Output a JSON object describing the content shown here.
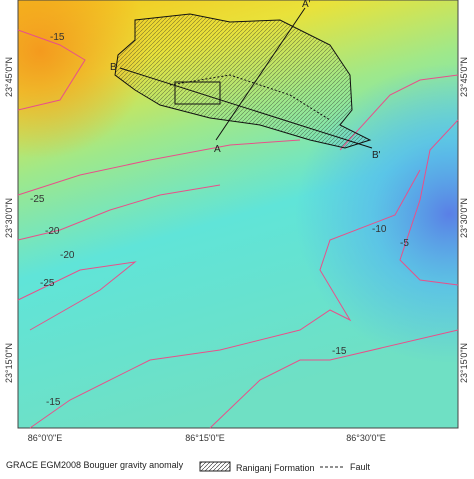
{
  "map": {
    "lat_labels": [
      "23°45'0\"N",
      "23°30'0\"N",
      "23°15'0\"N"
    ],
    "lon_labels": [
      "86°0'0\"E",
      "86°15'0\"E",
      "86°30'0\"E"
    ],
    "contour_labels": [
      "-15",
      "-25",
      "-20",
      "-20",
      "-25",
      "-10",
      "-5",
      "-15",
      "-15"
    ],
    "section_labels": [
      "A",
      "A'",
      "B",
      "B'"
    ],
    "legend": {
      "gravity": "GRACE EGM2008 Bouguer gravity anomaly",
      "formation": "Raniganj Formation",
      "fault": "Fault"
    }
  }
}
